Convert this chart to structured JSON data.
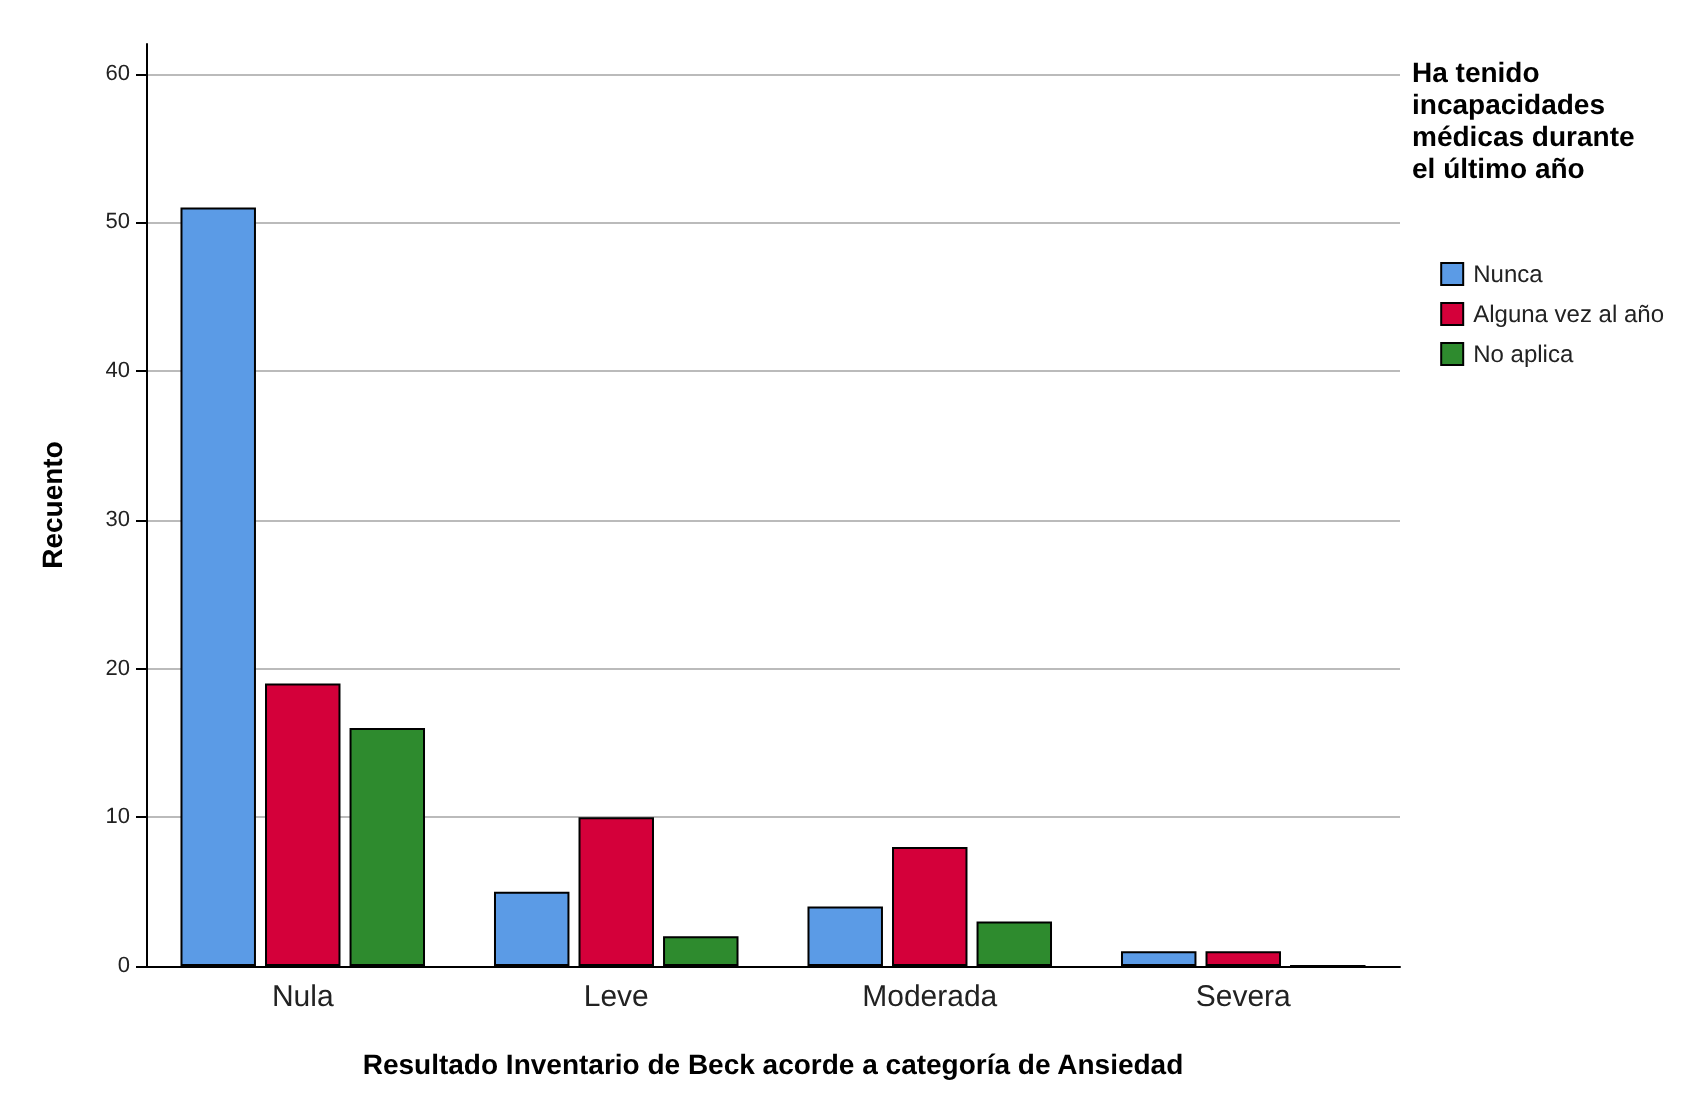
{
  "chart_data": {
    "type": "bar",
    "xlabel": "Resultado Inventario de Beck acorde a categoría de Ansiedad",
    "ylabel": "Recuento",
    "legend_title": "Ha tenido incapacidades médicas durante el último año",
    "categories": [
      "Nula",
      "Leve",
      "Moderada",
      "Severa"
    ],
    "series": [
      {
        "name": "Nunca",
        "color": "#5b9be6",
        "values": [
          51,
          5,
          4,
          1
        ]
      },
      {
        "name": "Alguna vez al año",
        "color": "#d4003a",
        "values": [
          19,
          10,
          8,
          1
        ]
      },
      {
        "name": "No aplica",
        "color": "#2e8b2e",
        "values": [
          16,
          2,
          3,
          0
        ]
      }
    ],
    "ylim": [
      0,
      62
    ],
    "yticks": [
      0,
      10,
      20,
      30,
      40,
      50,
      60
    ],
    "grid": "y",
    "legend": "top right"
  }
}
